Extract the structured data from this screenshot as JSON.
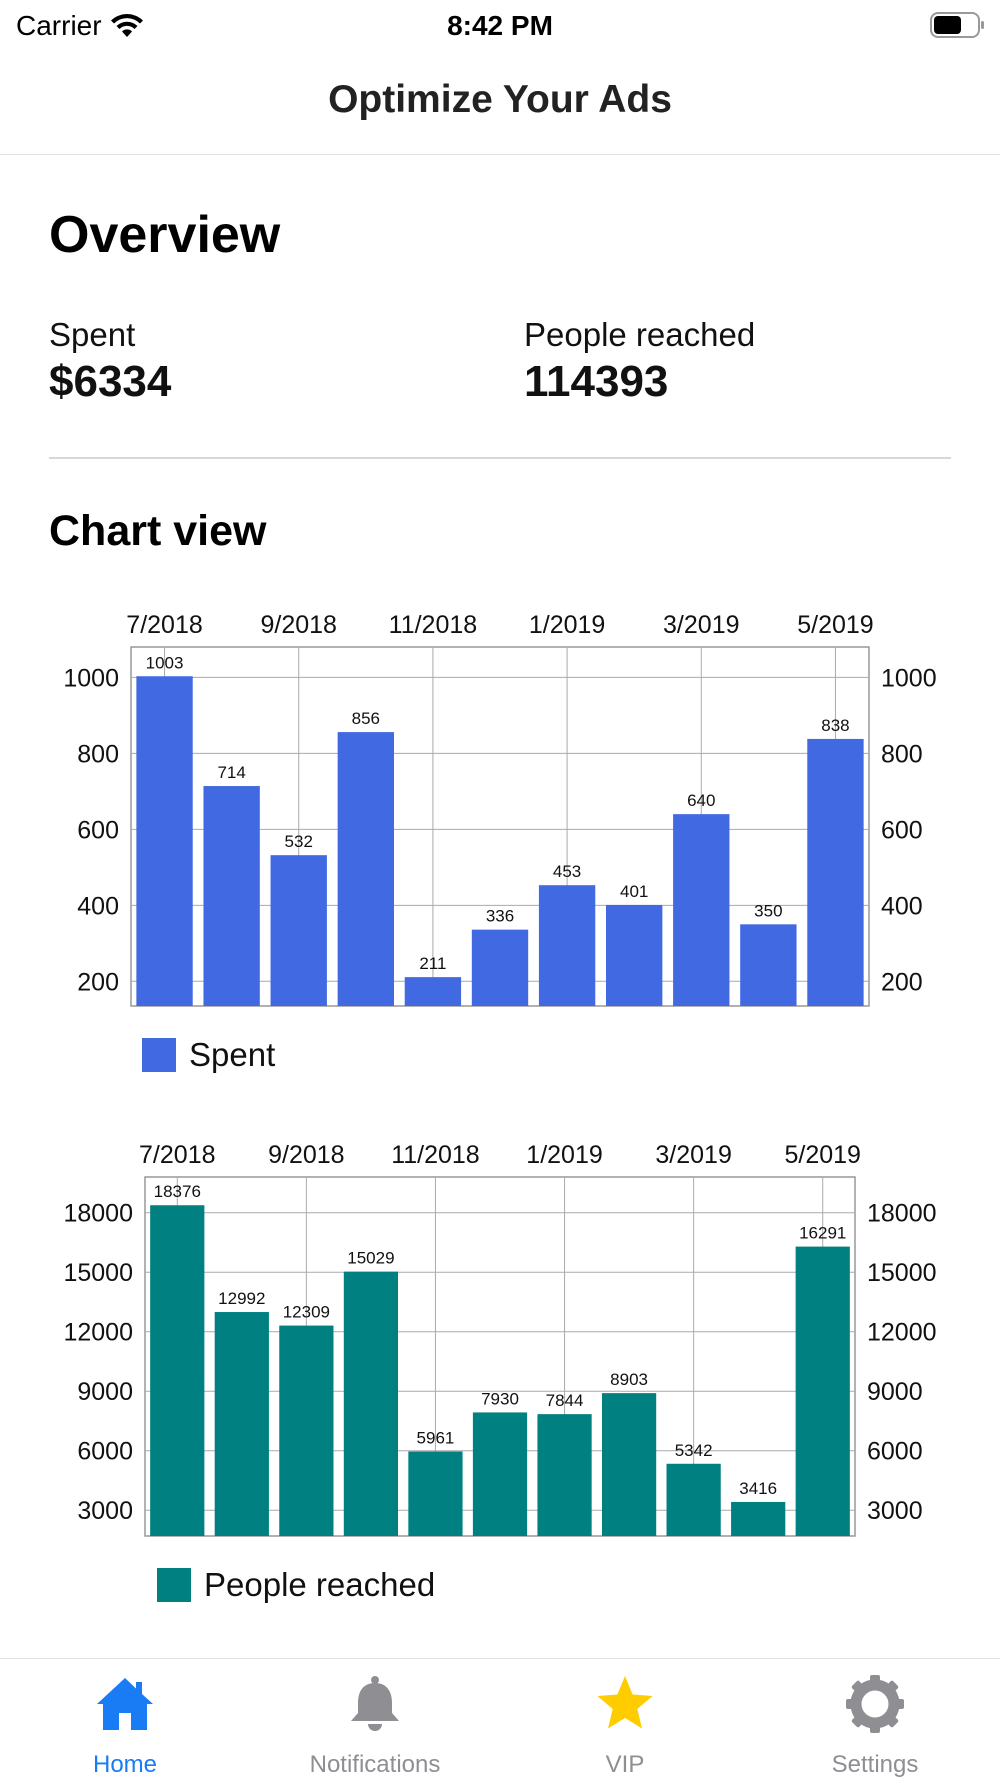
{
  "status_bar": {
    "carrier": "Carrier",
    "time": "8:42 PM"
  },
  "nav": {
    "title": "Optimize Your Ads"
  },
  "overview": {
    "title": "Overview",
    "spent_label": "Spent",
    "spent_value": "$6334",
    "reached_label": "People reached",
    "reached_value": "114393"
  },
  "chart_section": {
    "title": "Chart view"
  },
  "chart_data": [
    {
      "type": "bar",
      "color": "#4169e1",
      "x_ticks": [
        "7/2018",
        "9/2018",
        "11/2018",
        "1/2019",
        "3/2019",
        "5/2019"
      ],
      "categories": [
        "7/2018",
        "8/2018",
        "9/2018",
        "10/2018",
        "11/2018",
        "12/2018",
        "1/2019",
        "2/2019",
        "3/2019",
        "4/2019",
        "5/2019"
      ],
      "series": [
        {
          "name": "Spent",
          "values": [
            1003,
            714,
            532,
            856,
            211,
            336,
            453,
            401,
            640,
            350,
            838
          ]
        }
      ],
      "y_ticks": [
        200,
        400,
        600,
        800,
        1000
      ],
      "ylim": [
        135,
        1080
      ],
      "grid": true,
      "legend": "bottom-left"
    },
    {
      "type": "bar",
      "color": "#008080",
      "x_ticks": [
        "7/2018",
        "9/2018",
        "11/2018",
        "1/2019",
        "3/2019",
        "5/2019"
      ],
      "categories": [
        "7/2018",
        "8/2018",
        "9/2018",
        "10/2018",
        "11/2018",
        "12/2018",
        "1/2019",
        "2/2019",
        "3/2019",
        "4/2019",
        "5/2019"
      ],
      "series": [
        {
          "name": "People reached",
          "values": [
            18376,
            12992,
            12309,
            15029,
            5961,
            7930,
            7844,
            8903,
            5342,
            3416,
            16291
          ]
        }
      ],
      "y_ticks": [
        3000,
        6000,
        9000,
        12000,
        15000,
        18000
      ],
      "ylim": [
        1700,
        19800
      ],
      "grid": true,
      "legend": "bottom-left"
    }
  ],
  "tabs": [
    {
      "label": "Home",
      "icon": "house-icon",
      "color": "#1a7cf5",
      "active": true
    },
    {
      "label": "Notifications",
      "icon": "bell-icon",
      "color": "#8e8e93",
      "active": false
    },
    {
      "label": "VIP",
      "icon": "star-icon",
      "color": "#ffcc00",
      "active": false
    },
    {
      "label": "Settings",
      "icon": "gear-icon",
      "color": "#8e8e93",
      "active": false
    }
  ]
}
